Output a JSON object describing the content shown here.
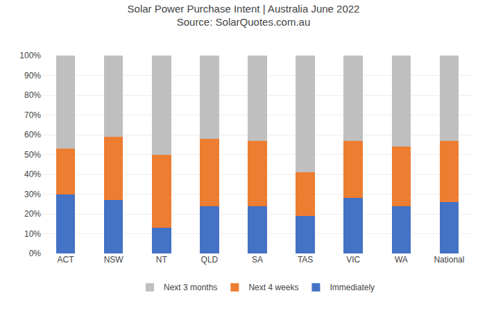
{
  "chart_data": {
    "type": "bar",
    "title": "Solar Power Purchase Intent | Australia June 2022",
    "subtitle": "Source: SolarQuotes.com.au",
    "categories": [
      "ACT",
      "NSW",
      "NT",
      "QLD",
      "SA",
      "TAS",
      "VIC",
      "WA",
      "National"
    ],
    "series": [
      {
        "name": "Immediately",
        "color": "#4472C4",
        "values": [
          30,
          27,
          13,
          24,
          24,
          19,
          28,
          24,
          26
        ]
      },
      {
        "name": "Next 4 weeks",
        "color": "#ED7D31",
        "values": [
          23,
          32,
          37,
          34,
          33,
          22,
          29,
          30,
          31
        ]
      },
      {
        "name": "Next 3 months",
        "color": "#BFBFBF",
        "values": [
          47,
          41,
          50,
          42,
          43,
          59,
          43,
          46,
          43
        ]
      }
    ],
    "stacked": true,
    "ylim": [
      0,
      100
    ],
    "yticks": [
      {
        "value": 0,
        "label": "0%"
      },
      {
        "value": 10,
        "label": "10%"
      },
      {
        "value": 20,
        "label": "20%"
      },
      {
        "value": 30,
        "label": "30%"
      },
      {
        "value": 40,
        "label": "40%"
      },
      {
        "value": 50,
        "label": "50%"
      },
      {
        "value": 60,
        "label": "60%"
      },
      {
        "value": 70,
        "label": "70%"
      },
      {
        "value": 80,
        "label": "80%"
      },
      {
        "value": 90,
        "label": "90%"
      },
      {
        "value": 100,
        "label": "100%"
      }
    ],
    "grid": true,
    "legend": "bottom"
  }
}
